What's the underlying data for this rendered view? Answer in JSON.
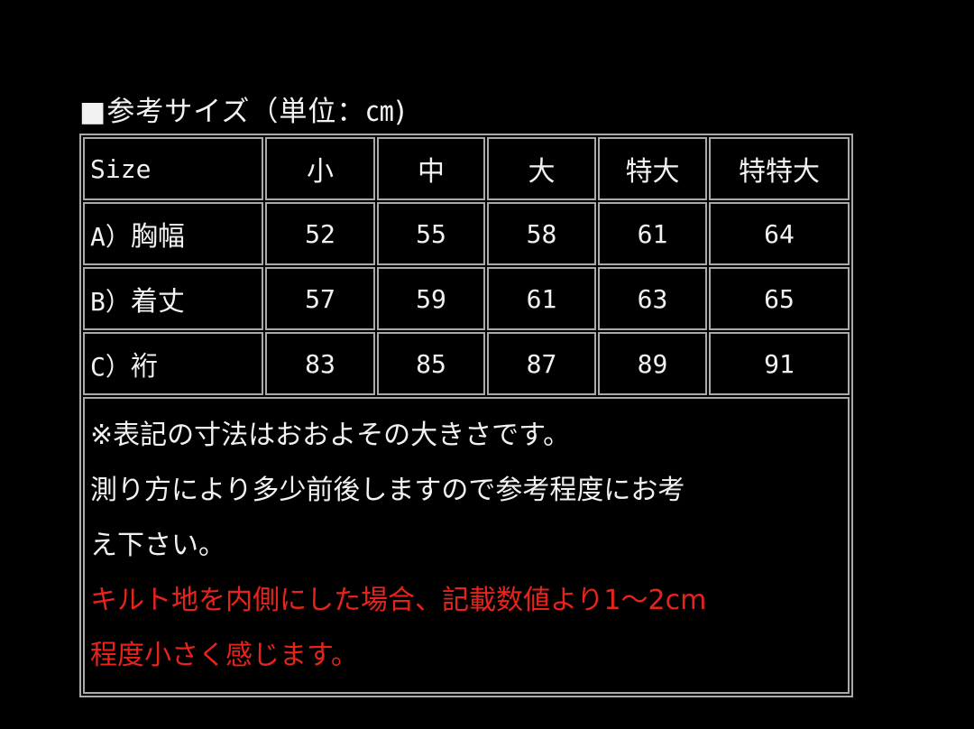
{
  "title": "■参考サイズ（単位：㎝)",
  "table": {
    "headers": [
      "Size",
      "小",
      "中",
      "大",
      "特大",
      "特特大"
    ],
    "rows": [
      {
        "prefix": "A）",
        "label": "胸幅",
        "values": [
          "52",
          "55",
          "58",
          "61",
          "64"
        ]
      },
      {
        "prefix": "B）",
        "label": "着丈",
        "values": [
          "57",
          "59",
          "61",
          "63",
          "65"
        ]
      },
      {
        "prefix": "C）",
        "label": "裄",
        "values": [
          "83",
          "85",
          "87",
          "89",
          "91"
        ]
      }
    ]
  },
  "notes": {
    "line1": "※表記の寸法はおおよその大きさです。",
    "line2": "測り方により多少前後しますので参考程度にお考",
    "line3": "え下さい。",
    "red_line1": "キルト地を内側にした場合、記載数値より1〜2cm",
    "red_line2": "程度小さく感じます。",
    "red_color": "#e8231c"
  }
}
